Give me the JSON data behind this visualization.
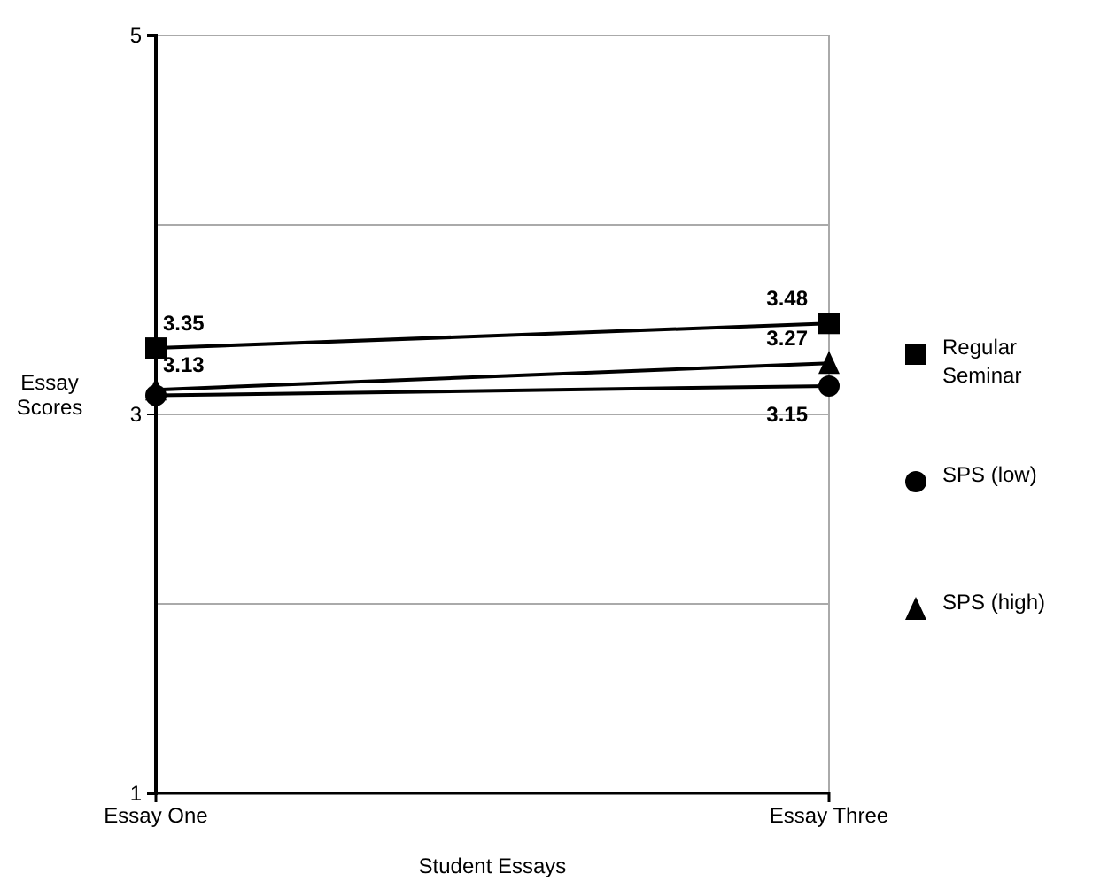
{
  "chart_data": {
    "type": "line",
    "xlabel": "Student Essays",
    "ylabel": "Essay Scores",
    "categories": [
      "Essay One",
      "Essay Three"
    ],
    "ylim": [
      1,
      5
    ],
    "yticks": [
      1,
      3,
      5
    ],
    "ref_lines": [
      {
        "axis": "y",
        "value": 2,
        "color": "#aaaaaa"
      },
      {
        "axis": "y",
        "value": 4,
        "color": "#aaaaaa"
      }
    ],
    "grid": true,
    "legend": "right",
    "line_style": "solid",
    "series": [
      {
        "name": "Regular Seminar",
        "color": "#000000",
        "marker": "square",
        "values": [
          3.35,
          3.48
        ],
        "value_labels": [
          "3.35",
          "3.48"
        ]
      },
      {
        "name": "SPS (low)",
        "color": "#000000",
        "marker": "circle",
        "values": [
          3.1,
          3.15
        ],
        "value_labels": [
          null,
          "3.15"
        ]
      },
      {
        "name": "SPS (high)",
        "color": "#000000",
        "marker": "triangle",
        "values": [
          3.13,
          3.27
        ],
        "value_labels": [
          "3.13",
          "3.27"
        ]
      }
    ]
  }
}
